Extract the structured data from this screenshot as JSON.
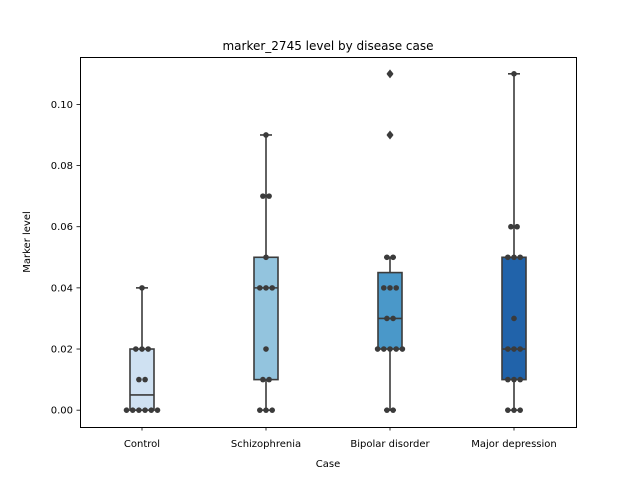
{
  "chart_data": {
    "type": "box",
    "title": "marker_2745 level by disease case",
    "xlabel": "Case",
    "ylabel": "Marker level",
    "ylim": [
      -0.0055,
      0.1155
    ],
    "yticks": [
      0.0,
      0.02,
      0.04,
      0.06,
      0.08,
      0.1
    ],
    "ytick_labels": [
      "0.00",
      "0.02",
      "0.04",
      "0.06",
      "0.08",
      "0.10"
    ],
    "categories": [
      "Control",
      "Schizophrenia",
      "Bipolar disorder",
      "Major depression"
    ],
    "grid": false,
    "legend": false,
    "boxes": [
      {
        "category": "Control",
        "q1": 0.0,
        "median": 0.005,
        "q3": 0.02,
        "whisker_low": 0.0,
        "whisker_high": 0.04,
        "fliers": [],
        "color": "#cfe1f2"
      },
      {
        "category": "Schizophrenia",
        "q1": 0.01,
        "median": 0.04,
        "q3": 0.05,
        "whisker_low": 0.0,
        "whisker_high": 0.09,
        "fliers": [],
        "color": "#93c4de"
      },
      {
        "category": "Bipolar disorder",
        "q1": 0.02,
        "median": 0.03,
        "q3": 0.045,
        "whisker_low": 0.0,
        "whisker_high": 0.05,
        "fliers": [
          0.09,
          0.11
        ],
        "color": "#4a98c9"
      },
      {
        "category": "Major depression",
        "q1": 0.01,
        "median": 0.02,
        "q3": 0.05,
        "whisker_low": 0.0,
        "whisker_high": 0.11,
        "fliers": [],
        "color": "#2163aa"
      }
    ],
    "points": [
      {
        "category": "Control",
        "values": [
          0.04,
          0.02,
          0.02,
          0.02,
          0.01,
          0.01,
          0.0,
          0.0,
          0.0,
          0.0,
          0.0,
          0.0
        ]
      },
      {
        "category": "Schizophrenia",
        "values": [
          0.09,
          0.07,
          0.07,
          0.05,
          0.04,
          0.04,
          0.04,
          0.02,
          0.01,
          0.01,
          0.0,
          0.0,
          0.0
        ]
      },
      {
        "category": "Bipolar disorder",
        "values": [
          0.11,
          0.09,
          0.05,
          0.05,
          0.04,
          0.04,
          0.04,
          0.03,
          0.03,
          0.02,
          0.02,
          0.02,
          0.02,
          0.02,
          0.0,
          0.0
        ]
      },
      {
        "category": "Major depression",
        "values": [
          0.11,
          0.06,
          0.06,
          0.05,
          0.05,
          0.05,
          0.03,
          0.02,
          0.02,
          0.02,
          0.01,
          0.01,
          0.01,
          0.0,
          0.0,
          0.0
        ]
      }
    ],
    "point_color": "#3b3b3b",
    "line_color": "#3b3b3b"
  }
}
